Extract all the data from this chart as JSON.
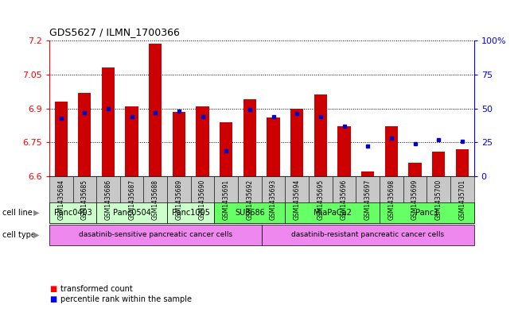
{
  "title": "GDS5627 / ILMN_1700366",
  "samples": [
    "GSM1435684",
    "GSM1435685",
    "GSM1435686",
    "GSM1435687",
    "GSM1435688",
    "GSM1435689",
    "GSM1435690",
    "GSM1435691",
    "GSM1435692",
    "GSM1435693",
    "GSM1435694",
    "GSM1435695",
    "GSM1435696",
    "GSM1435697",
    "GSM1435698",
    "GSM1435699",
    "GSM1435700",
    "GSM1435701"
  ],
  "bar_values": [
    6.93,
    6.97,
    7.08,
    6.91,
    7.185,
    6.885,
    6.91,
    6.84,
    6.94,
    6.86,
    6.9,
    6.96,
    6.82,
    6.62,
    6.82,
    6.66,
    6.71,
    6.72
  ],
  "percentile_values": [
    43,
    47,
    50,
    44,
    47,
    48,
    44,
    19,
    49,
    44,
    46,
    44,
    37,
    22,
    28,
    24,
    27,
    26
  ],
  "ymin": 6.6,
  "ymax": 7.2,
  "yticks": [
    6.6,
    6.75,
    6.9,
    7.05,
    7.2
  ],
  "right_yticks": [
    0,
    25,
    50,
    75,
    100
  ],
  "bar_color": "#CC0000",
  "dot_color": "#0000CC",
  "cell_lines": [
    {
      "label": "Panc0403",
      "start": 0,
      "end": 2,
      "color": "#ccffcc"
    },
    {
      "label": "Panc0504",
      "start": 2,
      "end": 5,
      "color": "#ccffcc"
    },
    {
      "label": "Panc1005",
      "start": 5,
      "end": 7,
      "color": "#ccffcc"
    },
    {
      "label": "SU8686",
      "start": 7,
      "end": 10,
      "color": "#66ff66"
    },
    {
      "label": "MiaPaCa2",
      "start": 10,
      "end": 14,
      "color": "#66ff66"
    },
    {
      "label": "Panc1",
      "start": 14,
      "end": 18,
      "color": "#66ff66"
    }
  ],
  "cell_type_groups": [
    {
      "label": "dasatinib-sensitive pancreatic cancer cells",
      "start": 0,
      "end": 9,
      "color": "#ee88ee"
    },
    {
      "label": "dasatinib-resistant pancreatic cancer cells",
      "start": 9,
      "end": 18,
      "color": "#ee88ee"
    }
  ],
  "bar_width": 0.55,
  "tick_bg_color": "#c8c8c8",
  "legend_red_label": "transformed count",
  "legend_blue_label": "percentile rank within the sample"
}
